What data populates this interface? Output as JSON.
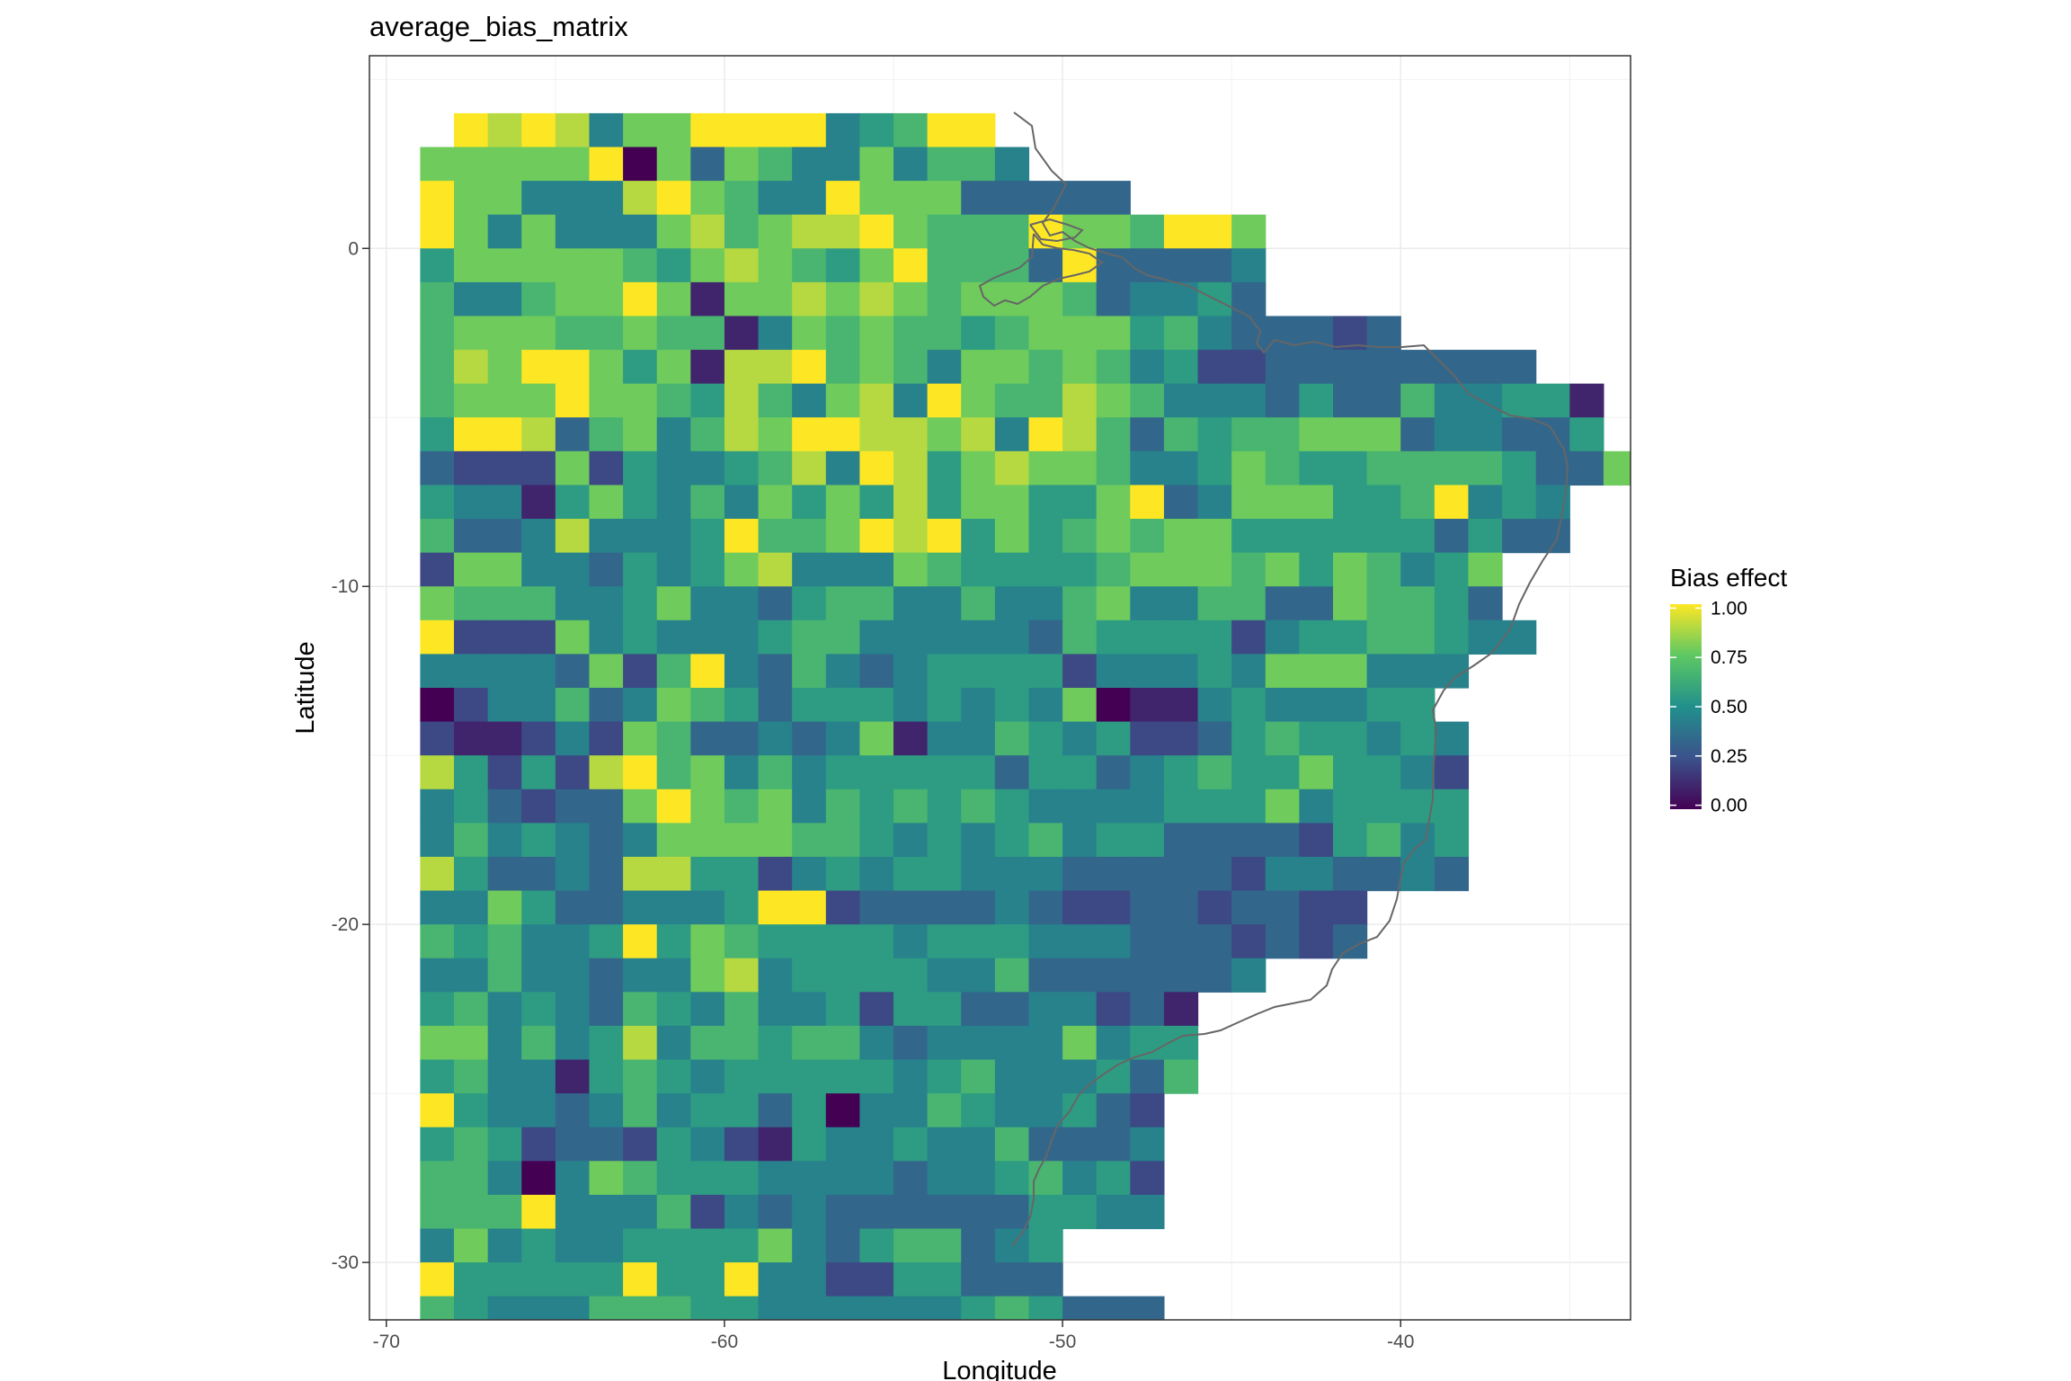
{
  "chart_data": {
    "type": "heatmap",
    "title": "average_bias_matrix",
    "xlabel": "Longitude",
    "ylabel": "Latitude",
    "xlim": [
      -70.5,
      -33.2
    ],
    "ylim": [
      -31.7,
      5.7
    ],
    "x_ticks": [
      -70,
      -60,
      -50,
      -40
    ],
    "y_ticks": [
      -30,
      -20,
      -10,
      0
    ],
    "grid": true,
    "cell_size_deg": 1,
    "grid_origin_lon": -69,
    "grid_origin_lat": 4,
    "legend": {
      "title": "Bias effect",
      "position": "right",
      "ticks": [
        "1.00",
        "0.75",
        "0.50",
        "0.25",
        "0.00"
      ],
      "tick_values": [
        1.0,
        0.75,
        0.5,
        0.25,
        0.0
      ]
    },
    "colorscale": [
      "#440154",
      "#3b528b",
      "#21908c",
      "#5dc863",
      "#fde725"
    ],
    "coastline_color": "#666666",
    "rows": [
      "9898477999945699",
      "777779073764474664",
      "977444897644977733333",
      "9747444786788976669776997",
      "5777776578765796663933334",
      "6446779717787876777634453",
      "67776676614767665677756433323",
      "687997571889676477676452233333333",
      "67779776586478497668764443533644551",
      "59983674687998878498636566777344335",
      "3222725445684985787764457655666653371",
      "5441575464757585775579347775569454",
      "6334844459667989575676775555553533",
      "27744354578444765555677767576457",
      "76664457443566446446744663376653",
      "922274544456644444365555245566544",
      "4444372694364345555244454777444",
      "024463476535554545470114544455",
      "2112427633434714465452235655454",
      "8525289674645555535534565575542",
      "4532337976746565654444555745555",
      "4645434777766545456455333325645",
      "8533438855245455444333332443343",
      "4475334445992333343223323322",
      "6564459576555545554443332323",
      "4464434478455554463333334",
      "56454365464452553344231",
      "77464584665664344447455",
      "56441565455555456444536",
      "9544346455350446544532",
      "5652332542154454463334",
      "6640476555444434456452",
      "6669444624343333335544",
      "4745445555743566345",
      "9555559559442255333",
      "6544466655444444565333"
    ],
    "row_offsets": [
      1,
      0,
      0,
      0,
      0,
      0,
      0,
      0,
      0,
      0,
      0,
      0,
      0,
      0,
      0,
      0,
      0,
      0,
      0,
      0,
      0,
      0,
      0,
      0,
      0,
      0,
      0,
      0,
      0,
      0,
      0,
      0,
      0,
      0,
      0,
      0
    ]
  }
}
